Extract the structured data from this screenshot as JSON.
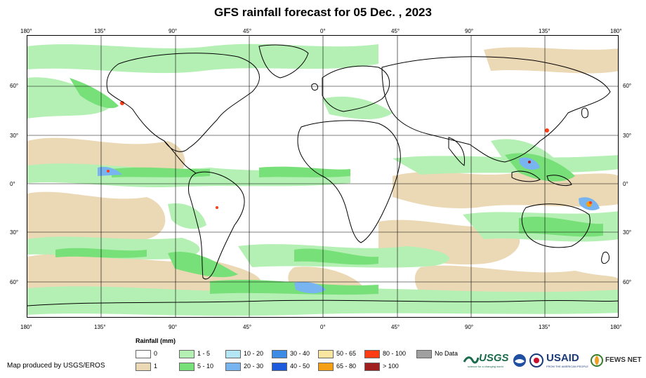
{
  "title": "GFS rainfall forecast for 05 Dec. , 2023",
  "axis": {
    "lon_ticks": [
      "180°",
      "135°",
      "90°",
      "45°",
      "0°",
      "45°",
      "90°",
      "135°",
      "180°"
    ],
    "lat_ticks": [
      "60°",
      "30°",
      "0°",
      "30°",
      "60°"
    ]
  },
  "legend": {
    "title": "Rainfall (mm)",
    "items": [
      {
        "label": "0",
        "color": "#ffffff"
      },
      {
        "label": "1",
        "color": "#ebd8b4"
      },
      {
        "label": "1 - 5",
        "color": "#b4f0b4"
      },
      {
        "label": "5 - 10",
        "color": "#78e078"
      },
      {
        "label": "10 - 20",
        "color": "#b4e6f5"
      },
      {
        "label": "20 - 30",
        "color": "#78b4f0"
      },
      {
        "label": "30 - 40",
        "color": "#3c8ce6"
      },
      {
        "label": "40 - 50",
        "color": "#1e5adc"
      },
      {
        "label": "50 - 65",
        "color": "#fae6a0"
      },
      {
        "label": "65 - 80",
        "color": "#f5a014"
      },
      {
        "label": "80 - 100",
        "color": "#ff3c14"
      },
      {
        "label": "> 100",
        "color": "#a01e1e"
      },
      {
        "label": "No Data",
        "color": "#a0a0a0"
      }
    ]
  },
  "credit": "Map produced by USGS/EROS",
  "logos": {
    "usgs": "USGS",
    "usgs_tagline": "science for a changing world",
    "usaid": "USAID",
    "usaid_tagline": "FROM THE AMERICAN PEOPLE",
    "fews": "FEWS NET"
  },
  "colors": {
    "land_outline": "#000000",
    "grid": "#000000",
    "dry": "#ebd8b4",
    "light": "#b4f0b4",
    "moderate": "#78e078",
    "heavy": "#78b4f0"
  }
}
